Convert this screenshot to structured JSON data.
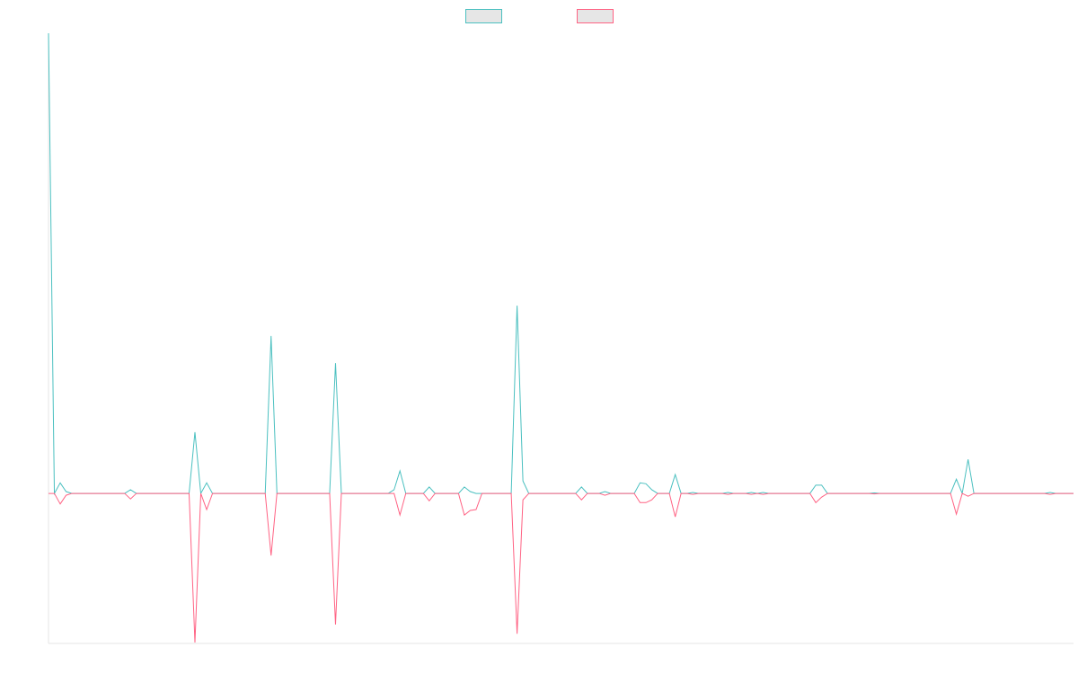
{
  "chart_data": {
    "type": "line",
    "ylim": [
      -32.6,
      100
    ],
    "series": [
      {
        "color": "#4bc0c0",
        "values": [
          100,
          0,
          2.3,
          0.4,
          0,
          0,
          0,
          0,
          0,
          0,
          0,
          0,
          0,
          0,
          0.8,
          0,
          0,
          0,
          0,
          0,
          0,
          0,
          0,
          0,
          0,
          13.3,
          0,
          2.3,
          0,
          0,
          0,
          0,
          0,
          0,
          0,
          0,
          0,
          0,
          34.2,
          0,
          0,
          0,
          0,
          0,
          0,
          0,
          0,
          0,
          0,
          28.3,
          0,
          0,
          0,
          0,
          0,
          0,
          0,
          0,
          0,
          0.8,
          4.9,
          0,
          0,
          0,
          0,
          1.4,
          0,
          0,
          0,
          0,
          0,
          1.4,
          0.4,
          0,
          0,
          0,
          0,
          0,
          0,
          0,
          40.8,
          2.7,
          0,
          0,
          0,
          0,
          0,
          0,
          0,
          0,
          0,
          1.4,
          0,
          0,
          0,
          0.4,
          0,
          0,
          0,
          0,
          0,
          2.3,
          2.1,
          0.8,
          0,
          0,
          0,
          4.1,
          0,
          0,
          0.2,
          0,
          0,
          0,
          0,
          0,
          0.2,
          0,
          0,
          0,
          0.2,
          0,
          0.2,
          0,
          0,
          0,
          0,
          0,
          0,
          0,
          0,
          1.8,
          1.8,
          0,
          0,
          0,
          0,
          0,
          0,
          0,
          0,
          0.1,
          0,
          0,
          0,
          0,
          0,
          0,
          0,
          0,
          0,
          0,
          0,
          0,
          0,
          3.1,
          0,
          7.4,
          0,
          0,
          0,
          0,
          0,
          0,
          0,
          0,
          0,
          0,
          0,
          0,
          0,
          0.2,
          0,
          0,
          0,
          0
        ]
      },
      {
        "color": "#ff6384",
        "values": [
          0,
          0,
          -2.3,
          -0.4,
          0,
          0,
          0,
          0,
          0,
          0,
          0,
          0,
          0,
          0,
          -1.2,
          0,
          0,
          0,
          0,
          0,
          0,
          0,
          0,
          0,
          0,
          -32.4,
          0,
          -3.5,
          0,
          0,
          0,
          0,
          0,
          0,
          0,
          0,
          0,
          0,
          -13.5,
          0,
          0,
          0,
          0,
          0,
          0,
          0,
          0,
          0,
          0,
          -28.5,
          0,
          0,
          0,
          0,
          0,
          0,
          0,
          0,
          0,
          0,
          -4.7,
          0,
          0,
          0,
          0,
          -1.6,
          0,
          0,
          0,
          0,
          0,
          -4.7,
          -3.7,
          -3.5,
          0,
          0,
          0,
          0,
          0,
          0,
          -30.5,
          -1.4,
          0,
          0,
          0,
          0,
          0,
          0,
          0,
          0,
          0,
          -1.4,
          0,
          0,
          0,
          -0.4,
          0,
          0,
          0,
          0,
          0,
          -2.0,
          -2.0,
          -1.4,
          0,
          0,
          0,
          -5.1,
          0,
          0,
          -0.2,
          0,
          0,
          0,
          0,
          0,
          -0.2,
          0,
          0,
          0,
          -0.2,
          0,
          -0.2,
          0,
          0,
          0,
          0,
          0,
          0,
          0,
          0,
          -2.0,
          -0.8,
          0,
          0,
          0,
          0,
          0,
          0,
          0,
          0,
          -0.1,
          0,
          0,
          0,
          0,
          0,
          0,
          0,
          0,
          0,
          0,
          0,
          0,
          0,
          -4.5,
          0,
          -0.6,
          0,
          0,
          0,
          0,
          0,
          0,
          0,
          0,
          0,
          0,
          0,
          0,
          0,
          -0.2,
          0,
          0,
          0,
          0
        ]
      }
    ]
  }
}
